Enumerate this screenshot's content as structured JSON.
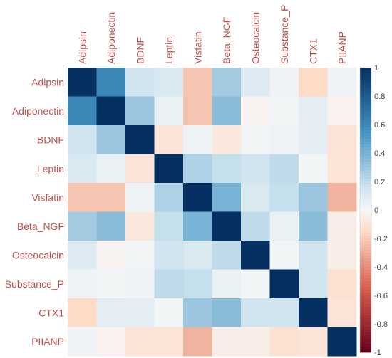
{
  "chart_data": {
    "type": "heatmap",
    "title": "",
    "variables": [
      "Adipsin",
      "Adiponectin",
      "BDNF",
      "Leptin",
      "Visfatin",
      "Beta_NGF",
      "Osteocalcin",
      "Substance_P",
      "CTX1",
      "PIIANP"
    ],
    "matrix": [
      [
        1.0,
        0.6,
        0.15,
        0.12,
        -0.22,
        0.28,
        0.1,
        0.03,
        -0.15,
        0.03
      ],
      [
        0.6,
        1.0,
        0.3,
        0.05,
        -0.22,
        0.35,
        -0.02,
        0.02,
        0.08,
        -0.03
      ],
      [
        0.15,
        0.3,
        1.0,
        -0.1,
        0.03,
        -0.08,
        0.02,
        0.03,
        0.08,
        -0.1
      ],
      [
        0.12,
        0.05,
        -0.1,
        1.0,
        0.25,
        0.18,
        0.15,
        0.2,
        0.02,
        -0.1
      ],
      [
        -0.22,
        -0.22,
        0.03,
        0.25,
        1.0,
        0.4,
        0.12,
        0.18,
        0.3,
        -0.28
      ],
      [
        0.28,
        0.35,
        -0.08,
        0.18,
        0.4,
        1.0,
        0.2,
        0.05,
        0.35,
        -0.05
      ],
      [
        0.1,
        -0.02,
        0.02,
        0.15,
        0.12,
        0.2,
        1.0,
        0.02,
        0.15,
        -0.05
      ],
      [
        0.03,
        0.02,
        0.03,
        0.2,
        0.18,
        0.05,
        0.02,
        1.0,
        0.15,
        -0.12
      ],
      [
        -0.15,
        0.08,
        0.08,
        0.02,
        0.3,
        0.35,
        0.15,
        0.15,
        1.0,
        -0.1
      ],
      [
        0.03,
        -0.03,
        -0.1,
        -0.1,
        -0.28,
        -0.05,
        -0.05,
        -0.12,
        -0.1,
        1.0
      ]
    ],
    "colorbar": {
      "range": [
        -1,
        1
      ],
      "ticks": [
        "1",
        "0.8",
        "0.6",
        "0.4",
        "0.2",
        "0",
        "-0.2",
        "-0.4",
        "-0.6",
        "-0.8",
        "-1"
      ]
    },
    "colorscale": {
      "neg_end": "#67001f",
      "neg_mid": "#d6604d",
      "neg_light": "#fddbc7",
      "zero": "#f7f7f7",
      "pos_light": "#d1e5f0",
      "pos_mid": "#4393c3",
      "pos_end": "#053061"
    },
    "label_color": "#c0504d"
  }
}
